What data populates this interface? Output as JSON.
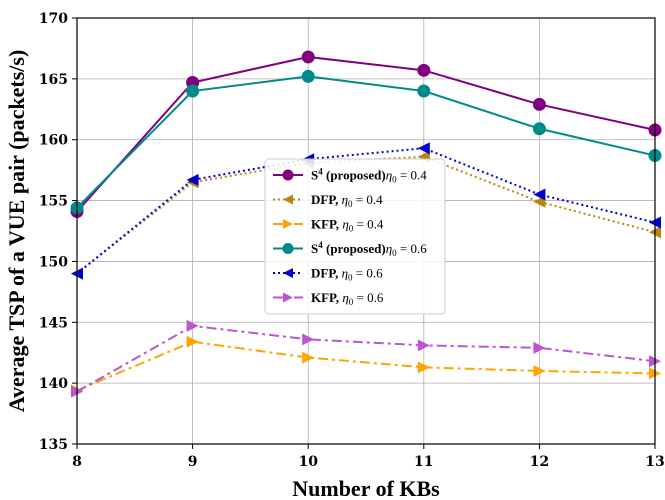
{
  "chart_data": {
    "type": "line",
    "xlabel": "Number of KBs",
    "ylabel": "Average TSP of a VUE pair (packets/s)",
    "x": [
      8,
      9,
      10,
      11,
      12,
      13
    ],
    "xlim": [
      8,
      13
    ],
    "ylim": [
      135,
      170
    ],
    "xticks": [
      "8",
      "9",
      "10",
      "11",
      "12",
      "13"
    ],
    "yticks": [
      "135",
      "140",
      "145",
      "150",
      "155",
      "160",
      "165",
      "170"
    ],
    "grid": true,
    "legend_position": "center",
    "series": [
      {
        "name": "S4 (proposed), η0 = 0.4",
        "label_parts": {
          "main": "S",
          "sup": "4",
          "bold": " (proposed)",
          "eta": "η",
          "sub": "0",
          "rest": " = 0.4"
        },
        "color": "#800080",
        "marker": "circle",
        "style": "solid",
        "values": [
          154.1,
          164.7,
          166.8,
          165.7,
          162.9,
          160.8
        ]
      },
      {
        "name": "DFP, η0 = 0.4",
        "label_parts": {
          "main": "",
          "sup": "",
          "bold": "DFP,",
          "eta": " η",
          "sub": "0",
          "rest": " = 0.4"
        },
        "color": "#b8860b",
        "marker": "triangle-left",
        "style": "dotted",
        "values": [
          149.0,
          156.5,
          158.1,
          158.6,
          154.9,
          152.4
        ]
      },
      {
        "name": "KFP, η0 = 0.4",
        "label_parts": {
          "main": "",
          "sup": "",
          "bold": "KFP,",
          "eta": " η",
          "sub": "0",
          "rest": " = 0.4"
        },
        "color": "#ffa500",
        "marker": "triangle-right",
        "style": "dashdot",
        "values": [
          139.4,
          143.4,
          142.1,
          141.3,
          141.0,
          140.8
        ]
      },
      {
        "name": "S4 (proposed), η0 = 0.6",
        "label_parts": {
          "main": "S",
          "sup": "4",
          "bold": " (proposed)",
          "eta": "η",
          "sub": "0",
          "rest": " = 0.6"
        },
        "color": "#008b8b",
        "marker": "circle",
        "style": "solid",
        "values": [
          154.4,
          164.0,
          165.2,
          164.0,
          160.9,
          158.7
        ]
      },
      {
        "name": "DFP, η0 = 0.6",
        "label_parts": {
          "main": "",
          "sup": "",
          "bold": "DFP,",
          "eta": " η",
          "sub": "0",
          "rest": " = 0.6"
        },
        "color": "#0000cd",
        "marker": "triangle-left",
        "style": "dotted",
        "values": [
          149.0,
          156.7,
          158.4,
          159.3,
          155.5,
          153.2
        ]
      },
      {
        "name": "KFP, η0 = 0.6",
        "label_parts": {
          "main": "",
          "sup": "",
          "bold": "KFP,",
          "eta": " η",
          "sub": "0",
          "rest": " = 0.6"
        },
        "color": "#ba55d3",
        "marker": "triangle-right",
        "style": "dashdot",
        "values": [
          139.3,
          144.7,
          143.6,
          143.1,
          142.9,
          141.8
        ]
      }
    ]
  }
}
